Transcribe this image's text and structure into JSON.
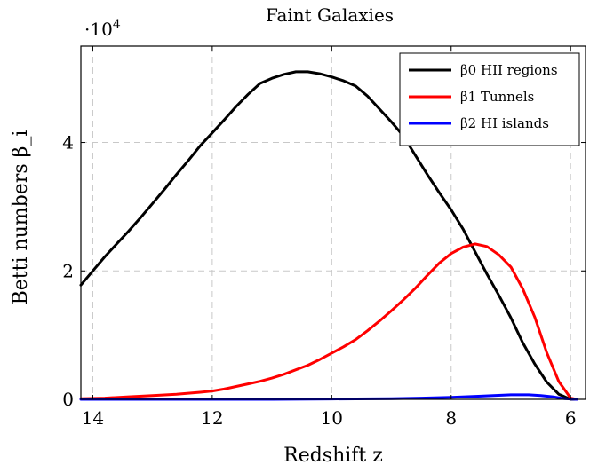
{
  "chart_data": {
    "type": "line",
    "title": "Faint Galaxies",
    "xlabel": "Redshift z",
    "ylabel": "Betti numbers β_i",
    "y_multiplier_label": "·10",
    "y_multiplier_exponent": "4",
    "xlim": [
      14.2,
      5.75
    ],
    "ylim": [
      0,
      5.5
    ],
    "x_reversed": true,
    "grid": true,
    "legend_position": "top-right",
    "x_ticks": [
      14,
      12,
      10,
      8,
      6
    ],
    "x_tick_labels": [
      "14",
      "12",
      "10",
      "8",
      "6"
    ],
    "y_ticks": [
      0,
      2,
      4
    ],
    "y_tick_labels": [
      "0",
      "2",
      "4"
    ],
    "series": [
      {
        "name": "β0 HII regions",
        "color": "#000000",
        "x": [
          14.2,
          14.0,
          13.8,
          13.6,
          13.4,
          13.2,
          13.0,
          12.8,
          12.6,
          12.4,
          12.2,
          12.0,
          11.8,
          11.6,
          11.4,
          11.2,
          11.0,
          10.8,
          10.6,
          10.4,
          10.2,
          10.0,
          9.8,
          9.6,
          9.4,
          9.2,
          9.0,
          8.8,
          8.6,
          8.4,
          8.2,
          8.0,
          7.8,
          7.6,
          7.4,
          7.2,
          7.0,
          6.8,
          6.6,
          6.4,
          6.2,
          6.0,
          5.9
        ],
        "y": [
          1.78,
          2.0,
          2.22,
          2.42,
          2.62,
          2.83,
          3.05,
          3.27,
          3.5,
          3.72,
          3.95,
          4.15,
          4.35,
          4.56,
          4.75,
          4.92,
          5.0,
          5.06,
          5.1,
          5.1,
          5.07,
          5.02,
          4.96,
          4.88,
          4.72,
          4.52,
          4.32,
          4.1,
          3.8,
          3.5,
          3.22,
          2.95,
          2.65,
          2.3,
          1.95,
          1.62,
          1.27,
          0.88,
          0.55,
          0.27,
          0.08,
          0.0,
          0.0
        ]
      },
      {
        "name": "β1 Tunnels",
        "color": "#ff0000",
        "x": [
          14.2,
          13.8,
          13.4,
          13.0,
          12.6,
          12.2,
          12.0,
          11.8,
          11.6,
          11.4,
          11.2,
          11.0,
          10.8,
          10.6,
          10.4,
          10.2,
          10.0,
          9.8,
          9.6,
          9.4,
          9.2,
          9.0,
          8.8,
          8.6,
          8.4,
          8.2,
          8.0,
          7.8,
          7.6,
          7.4,
          7.2,
          7.0,
          6.8,
          6.6,
          6.4,
          6.2,
          6.0,
          5.9
        ],
        "y": [
          0.01,
          0.02,
          0.04,
          0.06,
          0.08,
          0.11,
          0.13,
          0.16,
          0.2,
          0.24,
          0.28,
          0.33,
          0.39,
          0.46,
          0.53,
          0.62,
          0.72,
          0.82,
          0.93,
          1.07,
          1.22,
          1.38,
          1.55,
          1.73,
          1.93,
          2.12,
          2.27,
          2.37,
          2.42,
          2.38,
          2.25,
          2.06,
          1.72,
          1.28,
          0.73,
          0.28,
          0.02,
          0.0
        ]
      },
      {
        "name": "β2 HI islands",
        "color": "#0000ff",
        "x": [
          14.2,
          13.0,
          12.0,
          11.0,
          10.0,
          9.0,
          8.5,
          8.0,
          7.5,
          7.0,
          6.7,
          6.5,
          6.3,
          6.1,
          5.9
        ],
        "y": [
          0.0,
          0.0,
          0.0,
          0.0,
          0.005,
          0.01,
          0.02,
          0.03,
          0.05,
          0.07,
          0.07,
          0.06,
          0.04,
          0.01,
          0.0
        ]
      }
    ]
  }
}
